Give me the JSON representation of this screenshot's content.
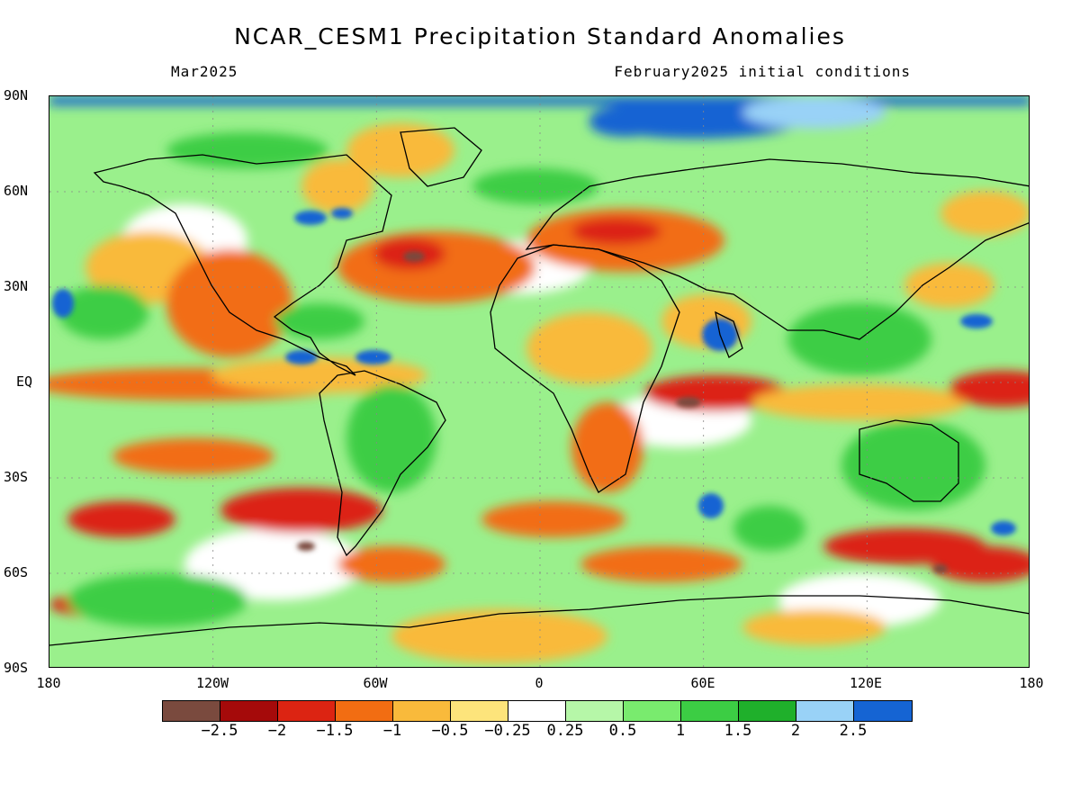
{
  "title": "NCAR_CESM1 Precipitation Standard Anomalies",
  "subtitle_left": "Mar2025",
  "subtitle_right": "February2025 initial conditions",
  "lat_labels": [
    "90N",
    "60N",
    "30N",
    "EQ",
    "30S",
    "60S",
    "90S"
  ],
  "lon_labels": [
    "180",
    "120W",
    "60W",
    "0",
    "60E",
    "120E",
    "180"
  ],
  "colorbar": {
    "colors": [
      "#7a4a3e",
      "#a50a0a",
      "#dc2412",
      "#f26d12",
      "#f9ba3b",
      "#fde47b",
      "#ffffff",
      "#b6f7a8",
      "#79eb6e",
      "#3ccd44",
      "#1fb02b",
      "#99d2f7",
      "#1564d3"
    ],
    "labels": [
      "−2.5",
      "−2",
      "−1.5",
      "−1",
      "−0.5",
      "−0.25",
      "0.25",
      "0.5",
      "1",
      "1.5",
      "2",
      "2.5"
    ]
  },
  "palette": {
    "background_green": "#86e87a",
    "land_outline": "#000000"
  }
}
